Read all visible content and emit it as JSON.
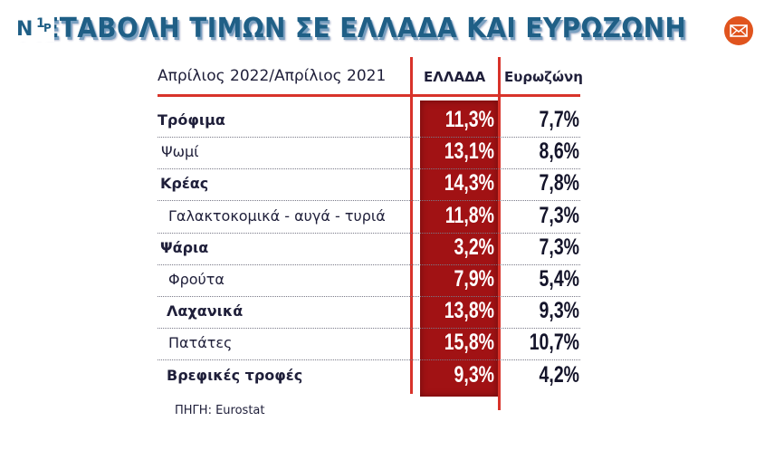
{
  "title": "ΜΕΤΑΒΟΛΗ ΤΙΜΩΝ ΣΕ ΕΛΛΑΔΑ ΚΑΙ ΕΥΡΩΖΩΝΗ",
  "title_visible": "ΤΑΒΟΛΗ ΤΙΜΩΝ ΣΕ ΕΛΛΑΔΑ ΚΑΙ ΕΥΡΩΖΩΝΗ",
  "icons": {
    "mail": "envelope-icon",
    "logo": "channel-logo"
  },
  "colors": {
    "title": "#1f5f86",
    "accent_red": "#d8332a",
    "greece_col": "#a11214",
    "mail_bg": "#e0541e"
  },
  "table": {
    "period_header": "Απρίλιος 2022/Απρίλιος 2021",
    "col_greece": "ΕΛΛΑΔΑ",
    "col_eurozone": "Ευρωζώνη",
    "rows": [
      {
        "label": "Τρόφιμα",
        "greece": "11,3%",
        "eurozone": "7,7%",
        "bold": true
      },
      {
        "label": "Ψωμί",
        "greece": "13,1%",
        "eurozone": "8,6%",
        "bold": false
      },
      {
        "label": "Κρέας",
        "greece": "14,3%",
        "eurozone": "7,8%",
        "bold": true
      },
      {
        "label": "Γαλακτοκομικά - αυγά - τυριά",
        "greece": "11,8%",
        "eurozone": "7,3%",
        "bold": false
      },
      {
        "label": "Ψάρια",
        "greece": "3,2%",
        "eurozone": "7,3%",
        "bold": true
      },
      {
        "label": "Φρούτα",
        "greece": "7,9%",
        "eurozone": "5,4%",
        "bold": false
      },
      {
        "label": "Λαχανικά",
        "greece": "13,8%",
        "eurozone": "9,3%",
        "bold": true
      },
      {
        "label": "Πατάτες",
        "greece": "15,8%",
        "eurozone": "10,7%",
        "bold": false
      },
      {
        "label": "Βρεφικές τροφές",
        "greece": "9,3%",
        "eurozone": "4,2%",
        "bold": true
      }
    ]
  },
  "source": "ΠΗΓΗ: Eurostat"
}
